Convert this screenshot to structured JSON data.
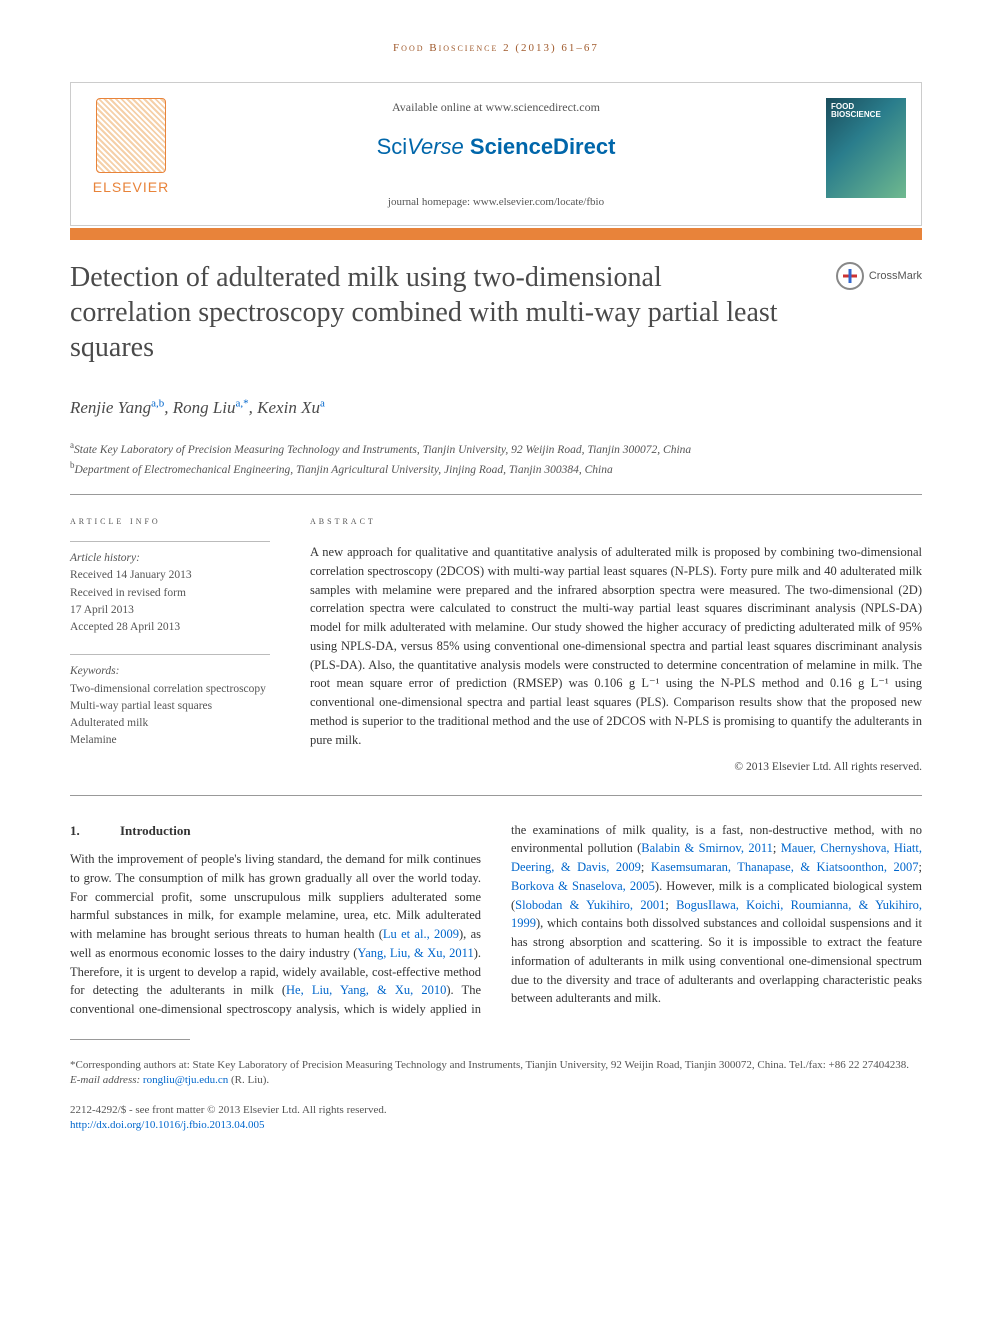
{
  "running_header": "Food Bioscience 2 (2013) 61–67",
  "header": {
    "available": "Available online at www.sciencedirect.com",
    "sciverse": {
      "sci": "Sci",
      "verse": "Verse",
      "direct": " ScienceDirect"
    },
    "homepage": "journal homepage: www.elsevier.com/locate/fbio",
    "elsevier": "ELSEVIER",
    "cover_title": "FOOD BIOSCIENCE"
  },
  "title": "Detection of adulterated milk using two-dimensional correlation spectroscopy combined with multi-way partial least squares",
  "crossmark": "CrossMark",
  "authors_html": "Renjie Yang<sup>a,b</sup>, Rong Liu<sup>a,*</sup>, Kexin Xu<sup>a</sup>",
  "affiliations": {
    "a": "State Key Laboratory of Precision Measuring Technology and Instruments, Tianjin University, 92 Weijin Road, Tianjin 300072, China",
    "b": "Department of Electromechanical Engineering, Tianjin Agricultural University, Jinjing Road, Tianjin 300384, China"
  },
  "info": {
    "heading": "article info",
    "history_label": "Article history:",
    "history": [
      "Received 14 January 2013",
      "Received in revised form",
      "17 April 2013",
      "Accepted 28 April 2013"
    ],
    "keywords_label": "Keywords:",
    "keywords": [
      "Two-dimensional correlation spectroscopy",
      "Multi-way partial least squares",
      "Adulterated milk",
      "Melamine"
    ]
  },
  "abstract": {
    "heading": "abstract",
    "text": "A new approach for qualitative and quantitative analysis of adulterated milk is proposed by combining two-dimensional correlation spectroscopy (2DCOS) with multi-way partial least squares (N-PLS). Forty pure milk and 40 adulterated milk samples with melamine were prepared and the infrared absorption spectra were measured. The two-dimensional (2D) correlation spectra were calculated to construct the multi-way partial least squares discriminant analysis (NPLS-DA) model for milk adulterated with melamine. Our study showed the higher accuracy of predicting adulterated milk of 95% using NPLS-DA, versus 85% using conventional one-dimensional spectra and partial least squares discriminant analysis (PLS-DA). Also, the quantitative analysis models were constructed to determine concentration of melamine in milk. The root mean square error of prediction (RMSEP) was 0.106 g L⁻¹ using the N-PLS method and 0.16 g L⁻¹ using conventional one-dimensional spectra and partial least squares (PLS). Comparison results show that the proposed new method is superior to the traditional method and the use of 2DCOS with N-PLS is promising to quantify the adulterants in pure milk.",
    "copyright": "© 2013 Elsevier Ltd. All rights reserved."
  },
  "section1": {
    "num": "1.",
    "title": "Introduction",
    "para1": "With the improvement of people's living standard, the demand for milk continues to grow. The consumption of milk has grown gradually all over the world today. For commercial profit, some unscrupulous milk suppliers adulterated some harmful substances in milk, for example melamine, urea, etc. Milk adulterated with melamine has brought serious threats to human health (",
    "ref1": "Lu et al., 2009",
    "para1b": "), as well as enormous economic losses to the dairy industry (",
    "ref2": "Yang, Liu, & Xu, 2011",
    "para1c": "). Therefore, it is urgent to develop a rapid, widely available, cost-effective method for detecting the adulterants in milk (",
    "ref3": "He, Liu, Yang, & Xu, 2010",
    "para1d": "). The conventional one-dimensional spectroscopy analysis, which is ",
    "para2a": "widely applied in the examinations of milk quality, is a fast, non-destructive method, with no environmental pollution (",
    "ref4": "Balabin & Smirnov, 2011",
    "sep1": "; ",
    "ref5": "Mauer, Chernyshova, Hiatt, Deering, & Davis, 2009",
    "sep2": "; ",
    "ref6": "Kasemsumaran, Thanapase, & Kiatsoonthon, 2007",
    "sep3": "; ",
    "ref7": "Borkova & Snaselova, 2005",
    "para2b": "). However, milk is a complicated biological system (",
    "ref8": "Slobodan & Yukihiro, 2001",
    "sep4": "; ",
    "ref9": "BogusIlawa, Koichi, Roumianna, & Yukihiro, 1999",
    "para2c": "), which contains both dissolved substances and colloidal suspensions and it has strong absorption and scattering. So it is impossible to extract the feature information of adulterants in milk using conventional one-dimensional spectrum due to the diversity and trace of adulterants and overlapping characteristic peaks between adulterants and milk."
  },
  "footnotes": {
    "corr": "*Corresponding authors at: State Key Laboratory of Precision Measuring Technology and Instruments, Tianjin University, 92 Weijin Road, Tianjin 300072, China. Tel./fax: +86 22 27404238.",
    "email_label": "E-mail address: ",
    "email": "rongliu@tju.edu.cn",
    "email_who": " (R. Liu)."
  },
  "bottom": {
    "issn": "2212-4292/$ - see front matter © 2013 Elsevier Ltd. All rights reserved.",
    "doi": "http://dx.doi.org/10.1016/j.fbio.2013.04.005"
  }
}
